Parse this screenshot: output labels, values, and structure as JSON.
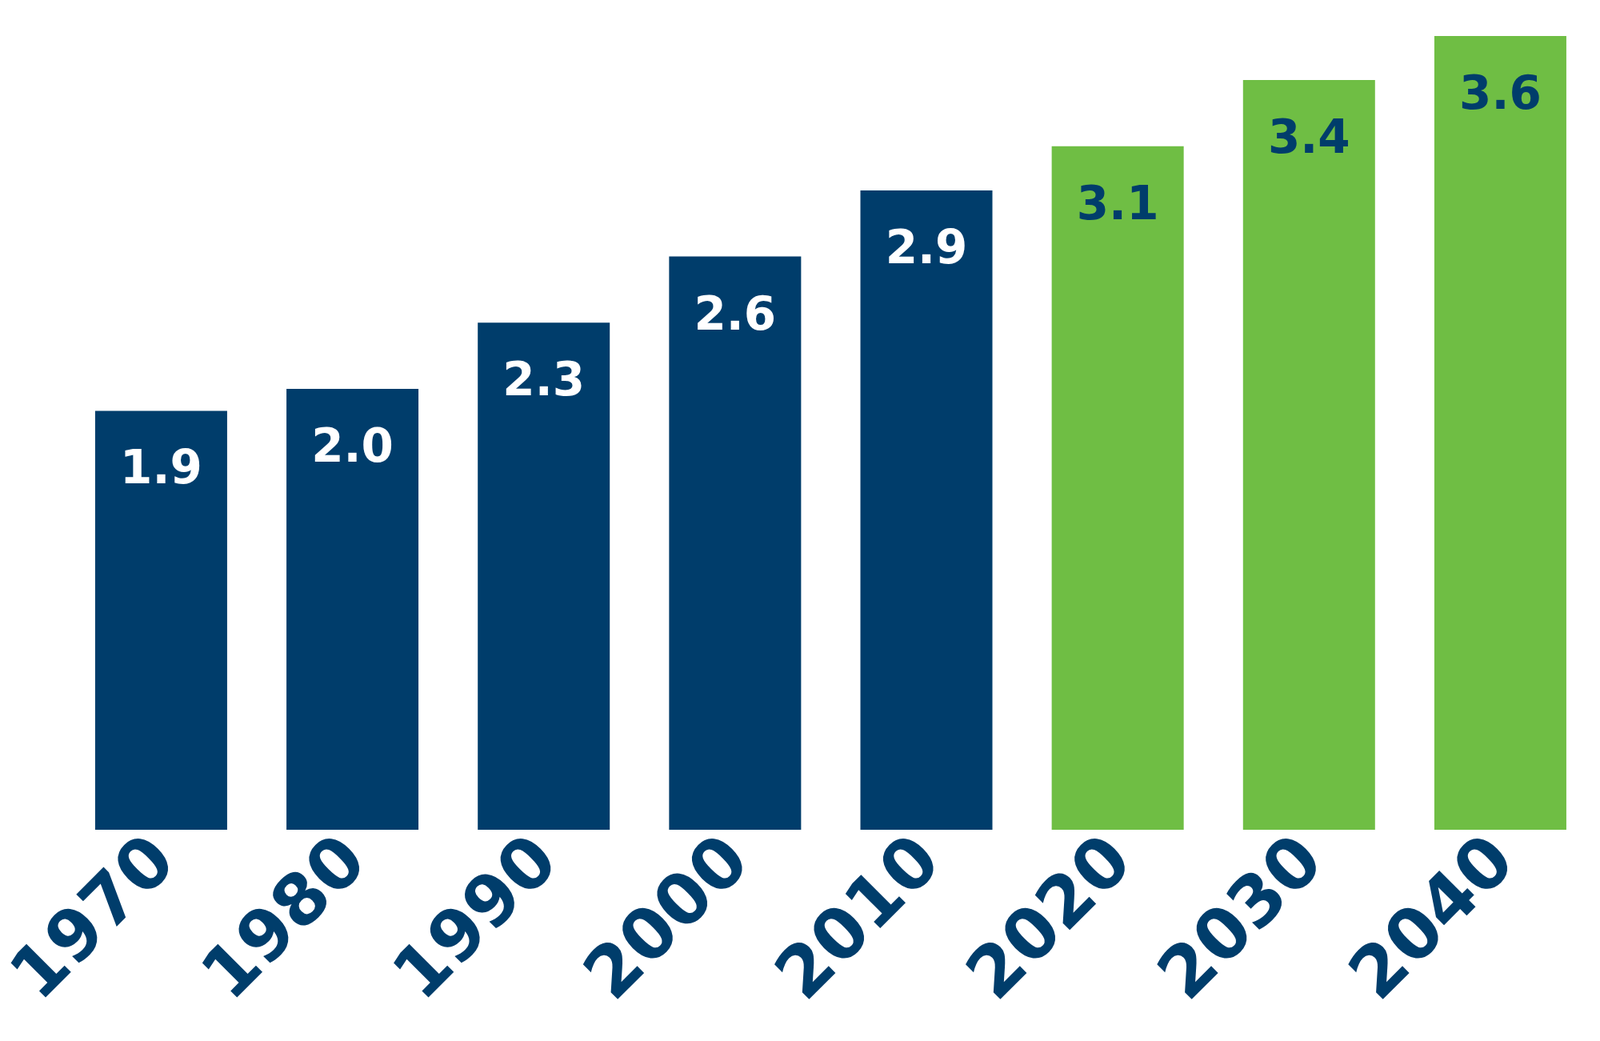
{
  "chart_data": {
    "type": "bar",
    "categories": [
      "1970",
      "1980",
      "1990",
      "2000",
      "2010",
      "2020",
      "2030",
      "2040"
    ],
    "values": [
      1.9,
      2.0,
      2.3,
      2.6,
      2.9,
      3.1,
      3.4,
      3.6
    ],
    "value_labels": [
      "1.9",
      "2.0",
      "2.3",
      "2.6",
      "2.9",
      "3.1",
      "3.4",
      "3.6"
    ],
    "colors": [
      "#003d6b",
      "#003d6b",
      "#003d6b",
      "#003d6b",
      "#003d6b",
      "#6fbe44",
      "#6fbe44",
      "#6fbe44"
    ],
    "ylim": [
      0,
      3.6
    ],
    "data_labels": true,
    "tick_labels": "x",
    "grid": false
  }
}
